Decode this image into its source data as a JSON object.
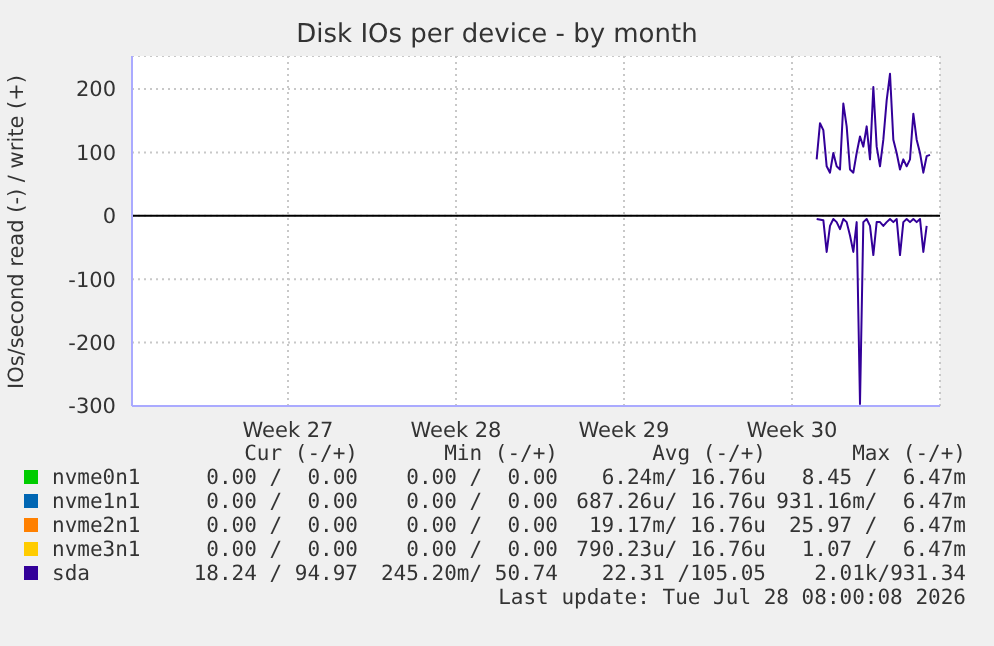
{
  "chart_data": {
    "type": "line",
    "title": "Disk IOs per device - by month",
    "ylabel": "IOs/second read (-) / write (+)",
    "xlim": [
      "2026-06-24T16:00",
      "2026-07-28T08:00"
    ],
    "xticks": [
      {
        "value": "2026-07-01T04:00",
        "label": "Week 27"
      },
      {
        "value": "2026-07-08T04:00",
        "label": "Week 28"
      },
      {
        "value": "2026-07-15T04:00",
        "label": "Week 29"
      },
      {
        "value": "2026-07-22T04:00",
        "label": "Week 30"
      }
    ],
    "ylim": [
      -300,
      252
    ],
    "yticks": [
      -300,
      -200,
      -100,
      0,
      100,
      200
    ],
    "grid": true,
    "legend": "bottom",
    "marker": "none",
    "line_style": "solid",
    "ref_lines": [
      {
        "axis": "y",
        "value": 0,
        "color": "#000000"
      }
    ],
    "series": [
      {
        "name": "nvme0n1",
        "color": "#00cc00",
        "values": [
          null
        ]
      },
      {
        "name": "nvme1n1",
        "color": "#0066b3",
        "values": [
          null
        ]
      },
      {
        "name": "nvme2n1",
        "color": "#ff8000",
        "values": [
          null
        ]
      },
      {
        "name": "nvme3n1",
        "color": "#ffcc00",
        "values": [
          null
        ]
      },
      {
        "name": "sda",
        "color": "#330099",
        "x": [
          "2026-07-23T04:40",
          "2026-07-23T08:00",
          "2026-07-23T11:20",
          "2026-07-23T14:40",
          "2026-07-23T18:00",
          "2026-07-23T21:20",
          "2026-07-24T00:40",
          "2026-07-24T04:00",
          "2026-07-24T07:20",
          "2026-07-24T10:40",
          "2026-07-24T14:00",
          "2026-07-24T17:20",
          "2026-07-24T20:40",
          "2026-07-25T00:00",
          "2026-07-25T03:20",
          "2026-07-25T06:40",
          "2026-07-25T10:00",
          "2026-07-25T13:20",
          "2026-07-25T16:40",
          "2026-07-25T20:00",
          "2026-07-25T23:20",
          "2026-07-26T02:40",
          "2026-07-26T06:00",
          "2026-07-26T09:20",
          "2026-07-26T12:40",
          "2026-07-26T16:00",
          "2026-07-26T19:20",
          "2026-07-26T22:40",
          "2026-07-27T02:00",
          "2026-07-27T05:20",
          "2026-07-27T08:40",
          "2026-07-27T12:00",
          "2026-07-27T15:20",
          "2026-07-27T18:40",
          "2026-07-27T22:00"
        ],
        "values": [
          89,
          146,
          135,
          78,
          68,
          99,
          78,
          73,
          177,
          141,
          73,
          68,
          99,
          125,
          109,
          141,
          89,
          203,
          109,
          78,
          120,
          182,
          224,
          120,
          99,
          73,
          89,
          78,
          89,
          161,
          120,
          99,
          68,
          94,
          96
        ]
      },
      {
        "color": "#330099",
        "x": [
          "2026-07-23T04:40",
          "2026-07-23T11:20",
          "2026-07-23T14:40",
          "2026-07-23T18:00",
          "2026-07-23T21:20",
          "2026-07-24T00:40",
          "2026-07-24T04:00",
          "2026-07-24T07:20",
          "2026-07-24T10:40",
          "2026-07-24T14:00",
          "2026-07-24T17:20",
          "2026-07-24T20:40",
          "2026-07-25T00:00",
          "2026-07-25T03:20",
          "2026-07-25T06:40",
          "2026-07-25T10:00",
          "2026-07-25T13:20",
          "2026-07-25T16:40",
          "2026-07-25T20:00",
          "2026-07-25T23:20",
          "2026-07-26T02:40",
          "2026-07-26T06:00",
          "2026-07-26T09:20",
          "2026-07-26T12:40",
          "2026-07-26T16:00",
          "2026-07-26T19:20",
          "2026-07-26T22:40",
          "2026-07-27T02:00",
          "2026-07-27T05:20",
          "2026-07-27T08:40",
          "2026-07-27T12:00",
          "2026-07-27T15:20",
          "2026-07-27T18:40"
        ],
        "values": [
          -5,
          -7,
          -57,
          -16,
          -5,
          -10,
          -21,
          -5,
          -10,
          -31,
          -57,
          -10,
          -297,
          -10,
          -5,
          -16,
          -62,
          -10,
          -10,
          -16,
          -10,
          -5,
          -10,
          -5,
          -62,
          -10,
          -5,
          -10,
          -5,
          -10,
          -5,
          -57,
          -16
        ]
      }
    ],
    "annotations": [
      "Cur (-/+)",
      "Min (-/+)",
      "Avg (-/+)",
      "Max (-/+)",
      "0.00 /  0.00",
      "0.00 /  0.00",
      "6.24m/ 16.76u",
      "8.45 /  6.47m",
      "0.00 /  0.00",
      "0.00 /  0.00",
      "687.26u/ 16.76u",
      "931.16m/  6.47m",
      "0.00 /  0.00",
      "0.00 /  0.00",
      "19.17m/ 16.76u",
      "25.97 /  6.47m",
      "0.00 /  0.00",
      "0.00 /  0.00",
      "790.23u/ 16.76u",
      "1.07 /  6.47m",
      "18.24 / 94.97",
      "245.20m/ 50.74",
      "22.31 /105.05",
      "2.01k/931.34",
      "Last update: Tue Jul 28 08:00:08 2026"
    ]
  }
}
